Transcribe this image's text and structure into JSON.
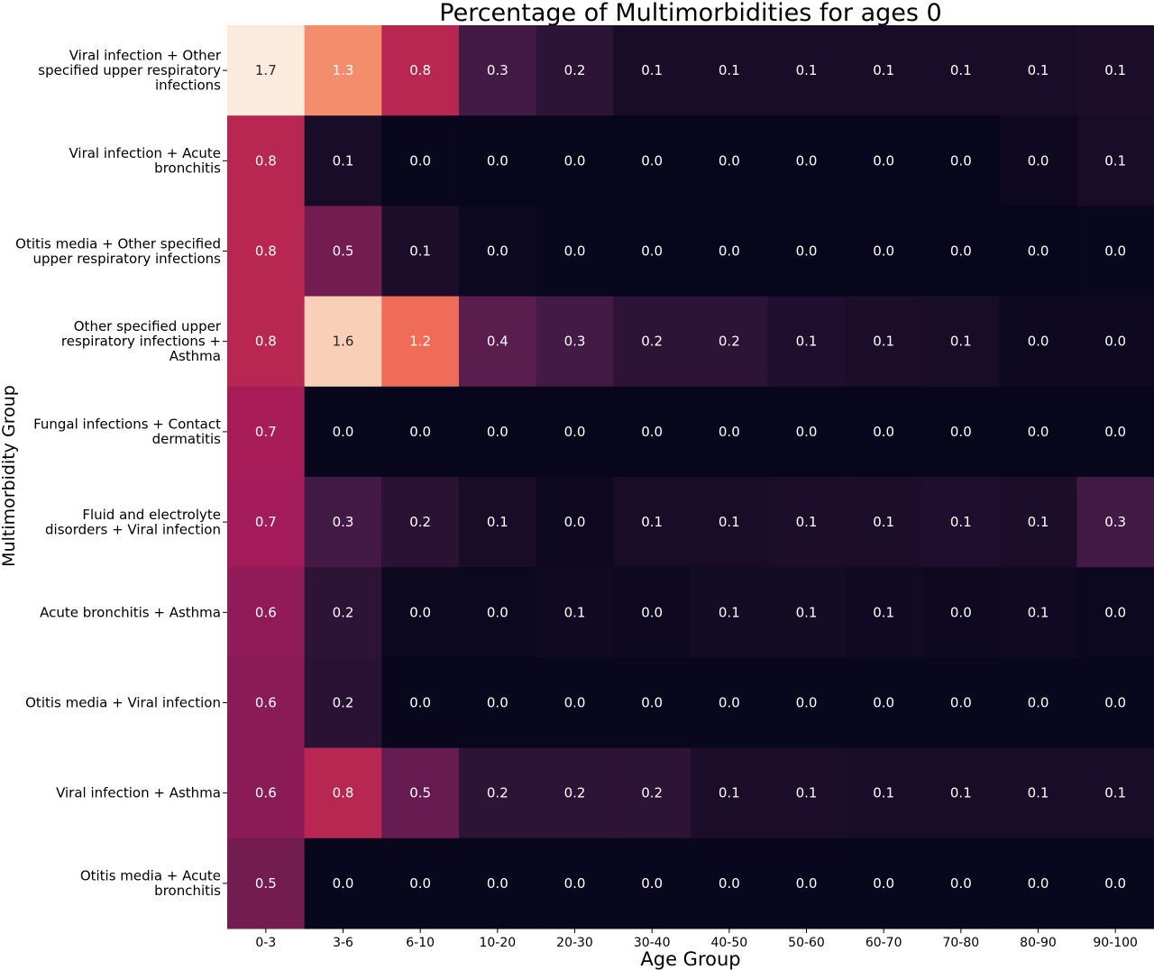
{
  "chart_data": {
    "type": "heatmap",
    "title": "Percentage of Multimorbidities for ages 0",
    "xlabel": "Age Group",
    "ylabel": "Multimorbidity  Group",
    "x_categories": [
      "0-3",
      "3-6",
      "6-10",
      "10-20",
      "20-30",
      "30-40",
      "40-50",
      "50-60",
      "60-70",
      "70-80",
      "80-90",
      "90-100"
    ],
    "y_categories": [
      [
        "Viral infection + Other",
        "specified upper respiratory",
        "infections"
      ],
      [
        "Viral infection + Acute",
        "bronchitis"
      ],
      [
        "Otitis media + Other specified",
        "upper respiratory infections"
      ],
      [
        "Other specified upper",
        "respiratory infections +",
        "Asthma"
      ],
      [
        "Fungal infections + Contact",
        "dermatitis"
      ],
      [
        "Fluid and electrolyte",
        "disorders + Viral infection"
      ],
      [
        "Acute bronchitis + Asthma"
      ],
      [
        "Otitis media + Viral infection"
      ],
      [
        "Viral infection + Asthma"
      ],
      [
        "Otitis media + Acute",
        "bronchitis"
      ]
    ],
    "labels": [
      [
        "1.7",
        "1.3",
        "0.8",
        "0.3",
        "0.2",
        "0.1",
        "0.1",
        "0.1",
        "0.1",
        "0.1",
        "0.1",
        "0.1"
      ],
      [
        "0.8",
        "0.1",
        "0.0",
        "0.0",
        "0.0",
        "0.0",
        "0.0",
        "0.0",
        "0.0",
        "0.0",
        "0.0",
        "0.1"
      ],
      [
        "0.8",
        "0.5",
        "0.1",
        "0.0",
        "0.0",
        "0.0",
        "0.0",
        "0.0",
        "0.0",
        "0.0",
        "0.0",
        "0.0"
      ],
      [
        "0.8",
        "1.6",
        "1.2",
        "0.4",
        "0.3",
        "0.2",
        "0.2",
        "0.1",
        "0.1",
        "0.1",
        "0.0",
        "0.0"
      ],
      [
        "0.7",
        "0.0",
        "0.0",
        "0.0",
        "0.0",
        "0.0",
        "0.0",
        "0.0",
        "0.0",
        "0.0",
        "0.0",
        "0.0"
      ],
      [
        "0.7",
        "0.3",
        "0.2",
        "0.1",
        "0.0",
        "0.1",
        "0.1",
        "0.1",
        "0.1",
        "0.1",
        "0.1",
        "0.3"
      ],
      [
        "0.6",
        "0.2",
        "0.0",
        "0.0",
        "0.1",
        "0.0",
        "0.1",
        "0.1",
        "0.1",
        "0.0",
        "0.1",
        "0.0"
      ],
      [
        "0.6",
        "0.2",
        "0.0",
        "0.0",
        "0.0",
        "0.0",
        "0.0",
        "0.0",
        "0.0",
        "0.0",
        "0.0",
        "0.0"
      ],
      [
        "0.6",
        "0.8",
        "0.5",
        "0.2",
        "0.2",
        "0.2",
        "0.1",
        "0.1",
        "0.1",
        "0.1",
        "0.1",
        "0.1"
      ],
      [
        "0.5",
        "0.0",
        "0.0",
        "0.0",
        "0.0",
        "0.0",
        "0.0",
        "0.0",
        "0.0",
        "0.0",
        "0.0",
        "0.0"
      ]
    ],
    "values": [
      [
        1.72,
        1.32,
        0.8,
        0.3,
        0.2,
        0.1,
        0.1,
        0.1,
        0.1,
        0.1,
        0.1,
        0.12
      ],
      [
        0.8,
        0.1,
        0.03,
        0.02,
        0.02,
        0.02,
        0.02,
        0.02,
        0.02,
        0.02,
        0.05,
        0.1
      ],
      [
        0.8,
        0.5,
        0.12,
        0.04,
        0.03,
        0.02,
        0.02,
        0.02,
        0.02,
        0.02,
        0.02,
        0.03
      ],
      [
        0.8,
        1.6,
        1.2,
        0.4,
        0.3,
        0.2,
        0.2,
        0.13,
        0.12,
        0.1,
        0.05,
        0.05
      ],
      [
        0.72,
        0.03,
        0.02,
        0.02,
        0.02,
        0.02,
        0.02,
        0.02,
        0.02,
        0.02,
        0.02,
        0.02
      ],
      [
        0.7,
        0.3,
        0.18,
        0.1,
        0.05,
        0.1,
        0.1,
        0.12,
        0.12,
        0.13,
        0.12,
        0.3
      ],
      [
        0.62,
        0.2,
        0.04,
        0.04,
        0.07,
        0.05,
        0.08,
        0.08,
        0.07,
        0.05,
        0.07,
        0.04
      ],
      [
        0.6,
        0.18,
        0.03,
        0.03,
        0.03,
        0.03,
        0.03,
        0.03,
        0.03,
        0.03,
        0.03,
        0.03
      ],
      [
        0.6,
        0.8,
        0.45,
        0.2,
        0.2,
        0.2,
        0.12,
        0.12,
        0.1,
        0.1,
        0.1,
        0.1
      ],
      [
        0.5,
        0.03,
        0.03,
        0.03,
        0.03,
        0.03,
        0.03,
        0.03,
        0.03,
        0.03,
        0.03,
        0.03
      ]
    ],
    "value_range": [
      0,
      1.72
    ],
    "colormap": [
      "#03051a",
      "#4c1d4b",
      "#a11a5b",
      "#e83f3f",
      "#f69c73",
      "#faebdd"
    ],
    "grid": false,
    "legend": "none"
  }
}
